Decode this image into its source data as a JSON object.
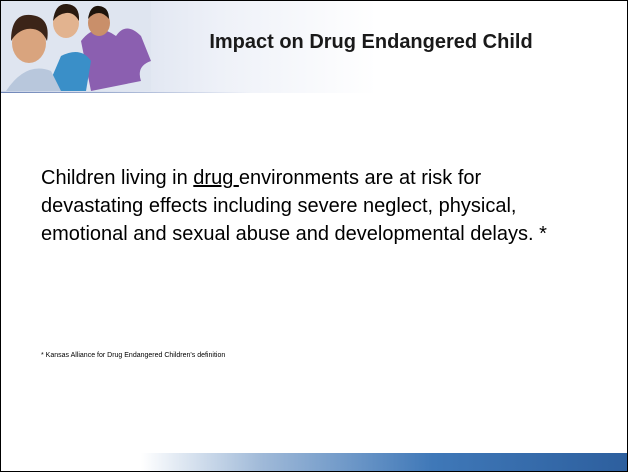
{
  "slide": {
    "title": "Impact on Drug Endangered Child",
    "body": {
      "before": "Children living in ",
      "underlined": "drug ",
      "after": "environments are at risk for devastating effects including severe neglect, physical, emotional and sexual abuse and developmental delays. *"
    },
    "footnote": "* Kansas Alliance for Drug Endangered Children's definition"
  }
}
